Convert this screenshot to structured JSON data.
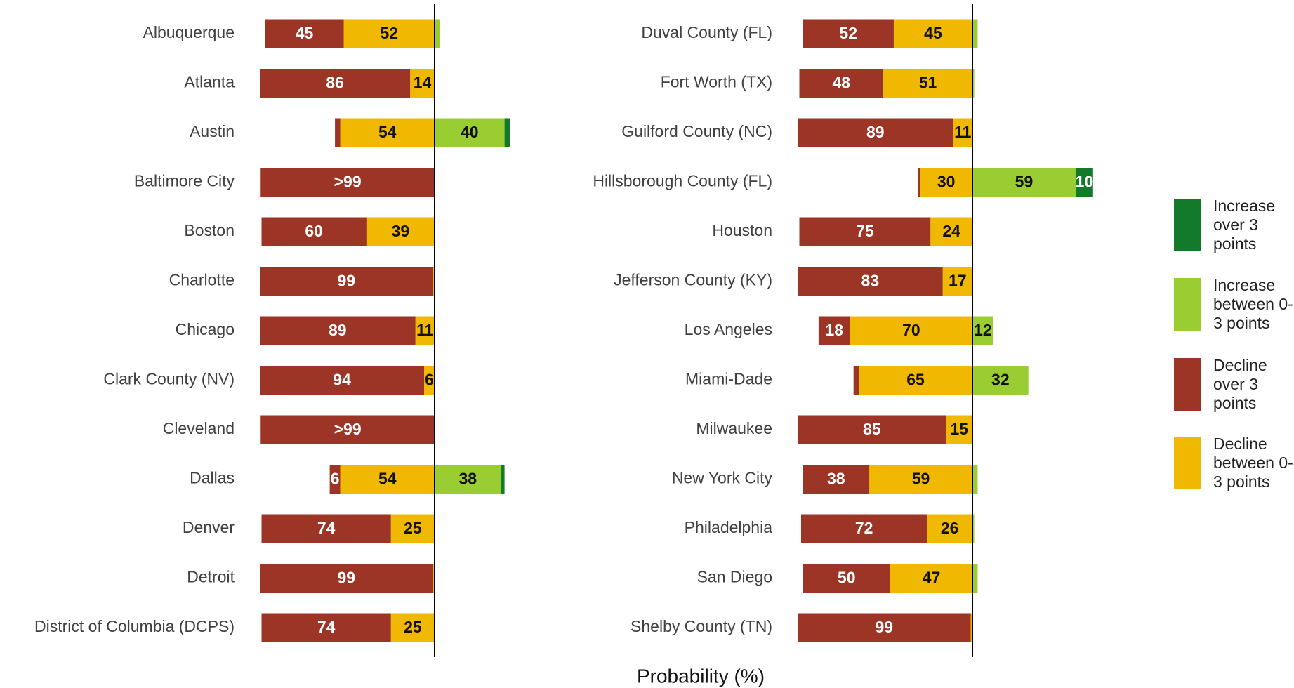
{
  "chart_data": [
    {
      "type": "bar",
      "categories": [
        "Albuquerque",
        "Atlanta",
        "Austin",
        "Baltimore City",
        "Boston",
        "Charlotte",
        "Chicago",
        "Clark County (NV)",
        "Cleveland",
        "Dallas",
        "Denver",
        "Detroit",
        "District of Columbia (DCPS)"
      ],
      "xlim": [
        -100,
        100
      ],
      "series": [
        {
          "name": "Decline over 3 points",
          "color": "#9c3526",
          "side": "left",
          "values": [
            45,
            86,
            3,
            99.5,
            60,
            99,
            89,
            94,
            99.5,
            6,
            74,
            99,
            74
          ],
          "value_labels": [
            "45",
            "86",
            null,
            ">99",
            "60",
            "99",
            "89",
            "94",
            ">99",
            "6",
            "74",
            "99",
            "74"
          ]
        },
        {
          "name": "Decline between 0-3 points",
          "color": "#f0b800",
          "side": "left",
          "values": [
            52,
            14,
            54,
            0,
            39,
            1,
            11,
            6,
            0,
            54,
            25,
            1,
            25
          ],
          "value_labels": [
            "52",
            "14",
            "54",
            null,
            "39",
            null,
            "11",
            "6",
            null,
            "54",
            "25",
            null,
            "25"
          ]
        },
        {
          "name": "Increase between 0-3 points",
          "color": "#9acd32",
          "side": "right",
          "values": [
            3,
            0,
            40,
            0,
            0,
            0,
            0,
            0,
            0,
            38,
            0,
            0,
            0
          ],
          "value_labels": [
            null,
            null,
            "40",
            null,
            null,
            null,
            null,
            null,
            null,
            "38",
            null,
            null,
            null
          ]
        },
        {
          "name": "Increase over 3 points",
          "color": "#127a2a",
          "side": "right",
          "values": [
            0,
            0,
            3,
            0,
            0,
            0,
            0,
            0,
            0,
            2,
            0,
            0,
            0
          ],
          "value_labels": [
            null,
            null,
            null,
            null,
            null,
            null,
            null,
            null,
            null,
            null,
            null,
            null,
            null
          ]
        }
      ],
      "xlabel": "Probability (%)"
    },
    {
      "type": "bar",
      "categories": [
        "Duval County (FL)",
        "Fort Worth (TX)",
        "Guilford County (NC)",
        "Hillsborough County (FL)",
        "Houston",
        "Jefferson County (KY)",
        "Los Angeles",
        "Miami-Dade",
        "Milwaukee",
        "New York City",
        "Philadelphia",
        "San Diego",
        "Shelby County (TN)"
      ],
      "xlim": [
        -100,
        100
      ],
      "series": [
        {
          "color": "#9c3526",
          "side": "left",
          "values": [
            52,
            48,
            89,
            1,
            75,
            83,
            18,
            3,
            85,
            38,
            72,
            50,
            99
          ],
          "value_labels": [
            "52",
            "48",
            "89",
            null,
            "75",
            "83",
            "18",
            null,
            "85",
            "38",
            "72",
            "50",
            "99"
          ]
        },
        {
          "color": "#f0b800",
          "side": "left",
          "values": [
            45,
            51,
            11,
            30,
            24,
            17,
            70,
            65,
            15,
            59,
            26,
            47,
            1
          ],
          "value_labels": [
            "45",
            "51",
            "11",
            "30",
            "24",
            "17",
            "70",
            "65",
            "15",
            "59",
            "26",
            "47",
            null
          ]
        },
        {
          "color": "#9acd32",
          "side": "right",
          "values": [
            3,
            1,
            0,
            59,
            0,
            0,
            12,
            32,
            0,
            3,
            1,
            3,
            0
          ],
          "value_labels": [
            null,
            null,
            null,
            "59",
            null,
            null,
            "12",
            "32",
            null,
            null,
            null,
            null,
            null
          ]
        },
        {
          "color": "#127a2a",
          "side": "right",
          "values": [
            0,
            0,
            0,
            10,
            0,
            0,
            0,
            0,
            0,
            0,
            0,
            0,
            0
          ],
          "value_labels": [
            null,
            null,
            null,
            "10",
            null,
            null,
            null,
            null,
            null,
            null,
            null,
            null,
            null
          ]
        }
      ]
    }
  ]
}
